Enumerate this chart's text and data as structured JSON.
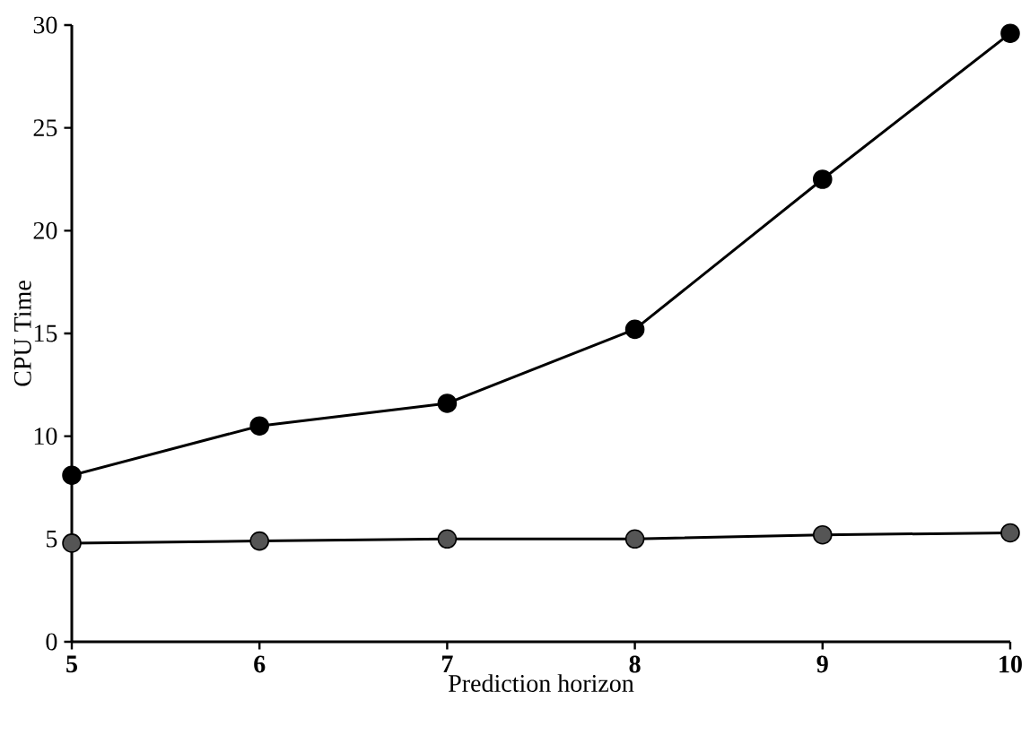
{
  "chart_data": {
    "type": "line",
    "xlabel": "Prediction horizon",
    "ylabel": "CPU Time",
    "x": [
      5,
      6,
      7,
      8,
      9,
      10
    ],
    "series": [
      {
        "color": "#000000",
        "values": [
          8.1,
          10.5,
          11.6,
          15.2,
          22.5,
          29.6
        ]
      },
      {
        "color": "#555555",
        "values": [
          4.8,
          4.9,
          5.0,
          5.0,
          5.2,
          5.3
        ]
      }
    ],
    "xlim": [
      5,
      10
    ],
    "ylim": [
      0,
      30
    ],
    "xticks": [
      5,
      6,
      7,
      8,
      9,
      10
    ],
    "yticks": [
      0,
      5,
      10,
      15,
      20,
      25,
      30
    ],
    "grid": false,
    "marker": "circle",
    "line_style": "solid"
  }
}
